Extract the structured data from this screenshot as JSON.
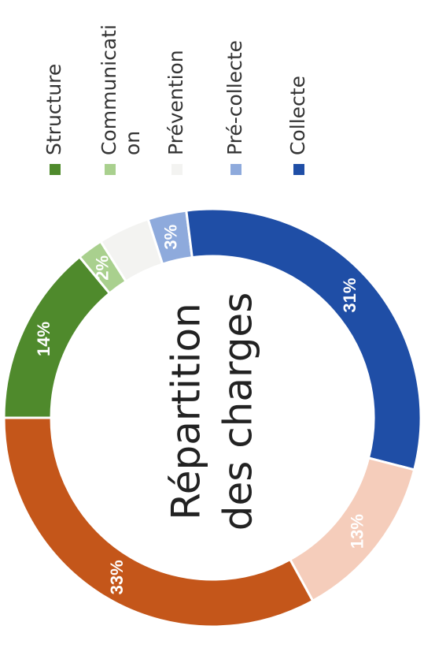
{
  "chart_data": {
    "type": "doughnut",
    "center_text": [
      "Répartition",
      "des charges"
    ],
    "categories": [
      "Structure",
      "Communication",
      "Prévention",
      "Pré-collecte",
      "Collecte",
      null,
      null
    ],
    "values": [
      14,
      2,
      4,
      3,
      31,
      13,
      33
    ],
    "value_labels": [
      "14%",
      "2%",
      null,
      "3%",
      "31%",
      "13%",
      "33%"
    ],
    "colors": [
      "#4f8a2c",
      "#a9d08e",
      "#f3f3f1",
      "#8eaadc",
      "#1f4ea6",
      "#f5cdbb",
      "#c4561a"
    ],
    "legend": "right"
  }
}
